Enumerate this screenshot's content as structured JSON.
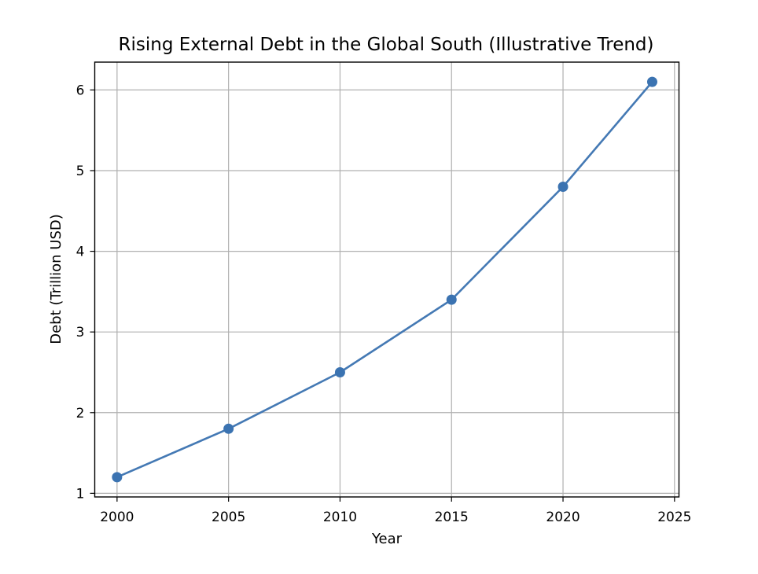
{
  "chart_data": {
    "type": "line",
    "title": "Rising External Debt in the Global South (Illustrative Trend)",
    "xlabel": "Year",
    "ylabel": "Debt (Trillion USD)",
    "x": [
      2000,
      2005,
      2010,
      2015,
      2020,
      2024
    ],
    "series": [
      {
        "values": [
          1.2,
          1.8,
          2.5,
          3.4,
          4.8,
          6.1
        ]
      }
    ],
    "xlim": [
      1999,
      2025.2
    ],
    "ylim": [
      0.955,
      6.345
    ],
    "xticks": [
      2000,
      2005,
      2010,
      2015,
      2020,
      2025
    ],
    "yticks": [
      1,
      2,
      3,
      4,
      5,
      6
    ],
    "grid": true,
    "legend": "none",
    "marker": "circle",
    "colors": {
      "line": "#4479b4",
      "marker": "#3b73b1"
    }
  }
}
